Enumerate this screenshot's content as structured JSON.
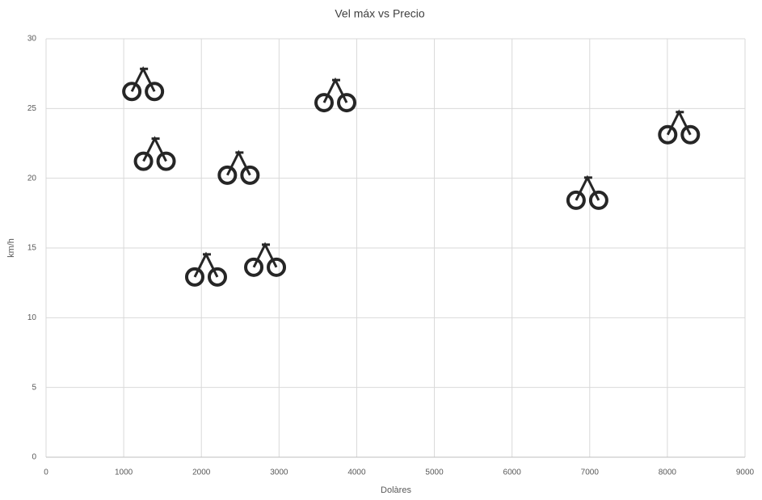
{
  "chart_data": {
    "type": "scatter",
    "title": "Vel máx vs Precio",
    "x_label": "Dolàres",
    "y_label": "km/h",
    "series": [
      {
        "name": "Vel máx",
        "color": "#262626",
        "x": [
          1250,
          1400,
          2480,
          2060,
          2820,
          3725,
          6970,
          8150
        ],
        "values": [
          26.8,
          21.8,
          20.8,
          13.5,
          14.2,
          26,
          19,
          23.7
        ]
      }
    ],
    "xlim": [
      0,
      9000
    ],
    "xticks": [
      0,
      1000,
      2000,
      3000,
      4000,
      5000,
      6000,
      7000,
      8000,
      9000
    ],
    "ylim": [
      0,
      30
    ],
    "yticks": [
      0,
      5,
      10,
      15,
      20,
      25,
      30
    ],
    "grid": true
  }
}
